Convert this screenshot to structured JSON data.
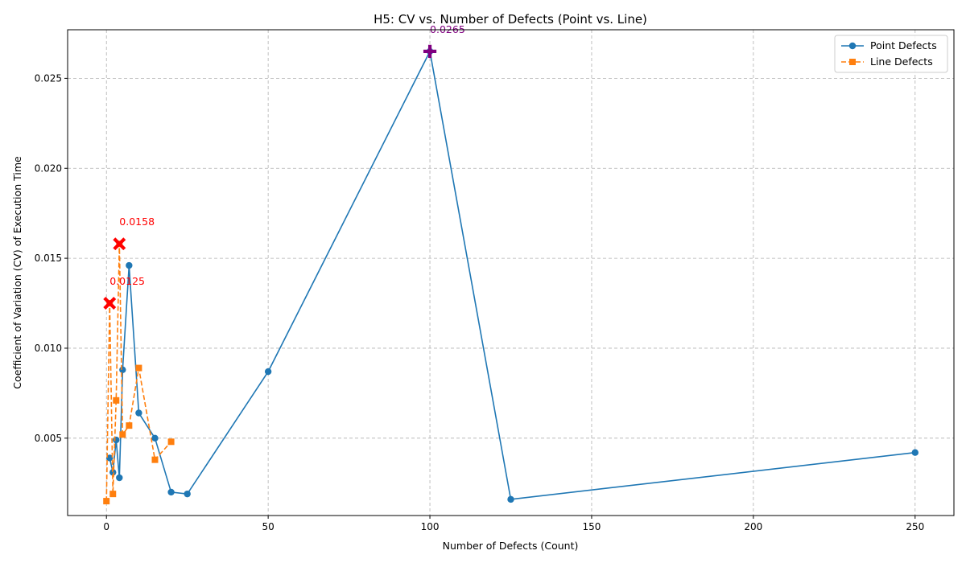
{
  "chart_data": {
    "type": "line",
    "title": "H5: CV vs. Number of Defects (Point vs. Line)",
    "xlabel": "Number of Defects (Count)",
    "ylabel": "Coefficient of Variation (CV) of Execution Time",
    "xlim": [
      -12,
      262
    ],
    "ylim": [
      0.0007,
      0.0277
    ],
    "x_ticks": [
      0,
      50,
      100,
      150,
      200,
      250
    ],
    "x_tick_labels": [
      "0",
      "50",
      "100",
      "150",
      "200",
      "250"
    ],
    "y_ticks": [
      0.005,
      0.01,
      0.015,
      0.02,
      0.025
    ],
    "y_tick_labels": [
      "0.005",
      "0.010",
      "0.015",
      "0.020",
      "0.025"
    ],
    "grid": true,
    "legend_position": "top-right",
    "series": [
      {
        "name": "Point Defects",
        "color": "#1f77b4",
        "marker": "circle",
        "line_style": "solid",
        "x": [
          1,
          2,
          3,
          4,
          5,
          7,
          10,
          15,
          20,
          25,
          50,
          100,
          125,
          250
        ],
        "y": [
          0.0039,
          0.0031,
          0.0049,
          0.0028,
          0.0088,
          0.0146,
          0.0064,
          0.005,
          0.002,
          0.0019,
          0.0087,
          0.0265,
          0.0016,
          0.0042
        ]
      },
      {
        "name": "Line Defects",
        "color": "#ff7f0e",
        "marker": "square",
        "line_style": "dashed",
        "x": [
          0,
          1,
          2,
          3,
          4,
          5,
          7,
          10,
          15,
          20
        ],
        "y": [
          0.0015,
          0.0125,
          0.0019,
          0.0071,
          0.0158,
          0.0052,
          0.0057,
          0.0089,
          0.0038,
          0.0048
        ]
      }
    ],
    "highlights": [
      {
        "x": 1,
        "y": 0.0125,
        "label": "0.0125",
        "color": "#ff0000",
        "marker": "x"
      },
      {
        "x": 4,
        "y": 0.0158,
        "label": "0.0158",
        "color": "#ff0000",
        "marker": "x"
      },
      {
        "x": 100,
        "y": 0.0265,
        "label": "0.0265",
        "color": "#800080",
        "marker": "plus"
      }
    ]
  }
}
